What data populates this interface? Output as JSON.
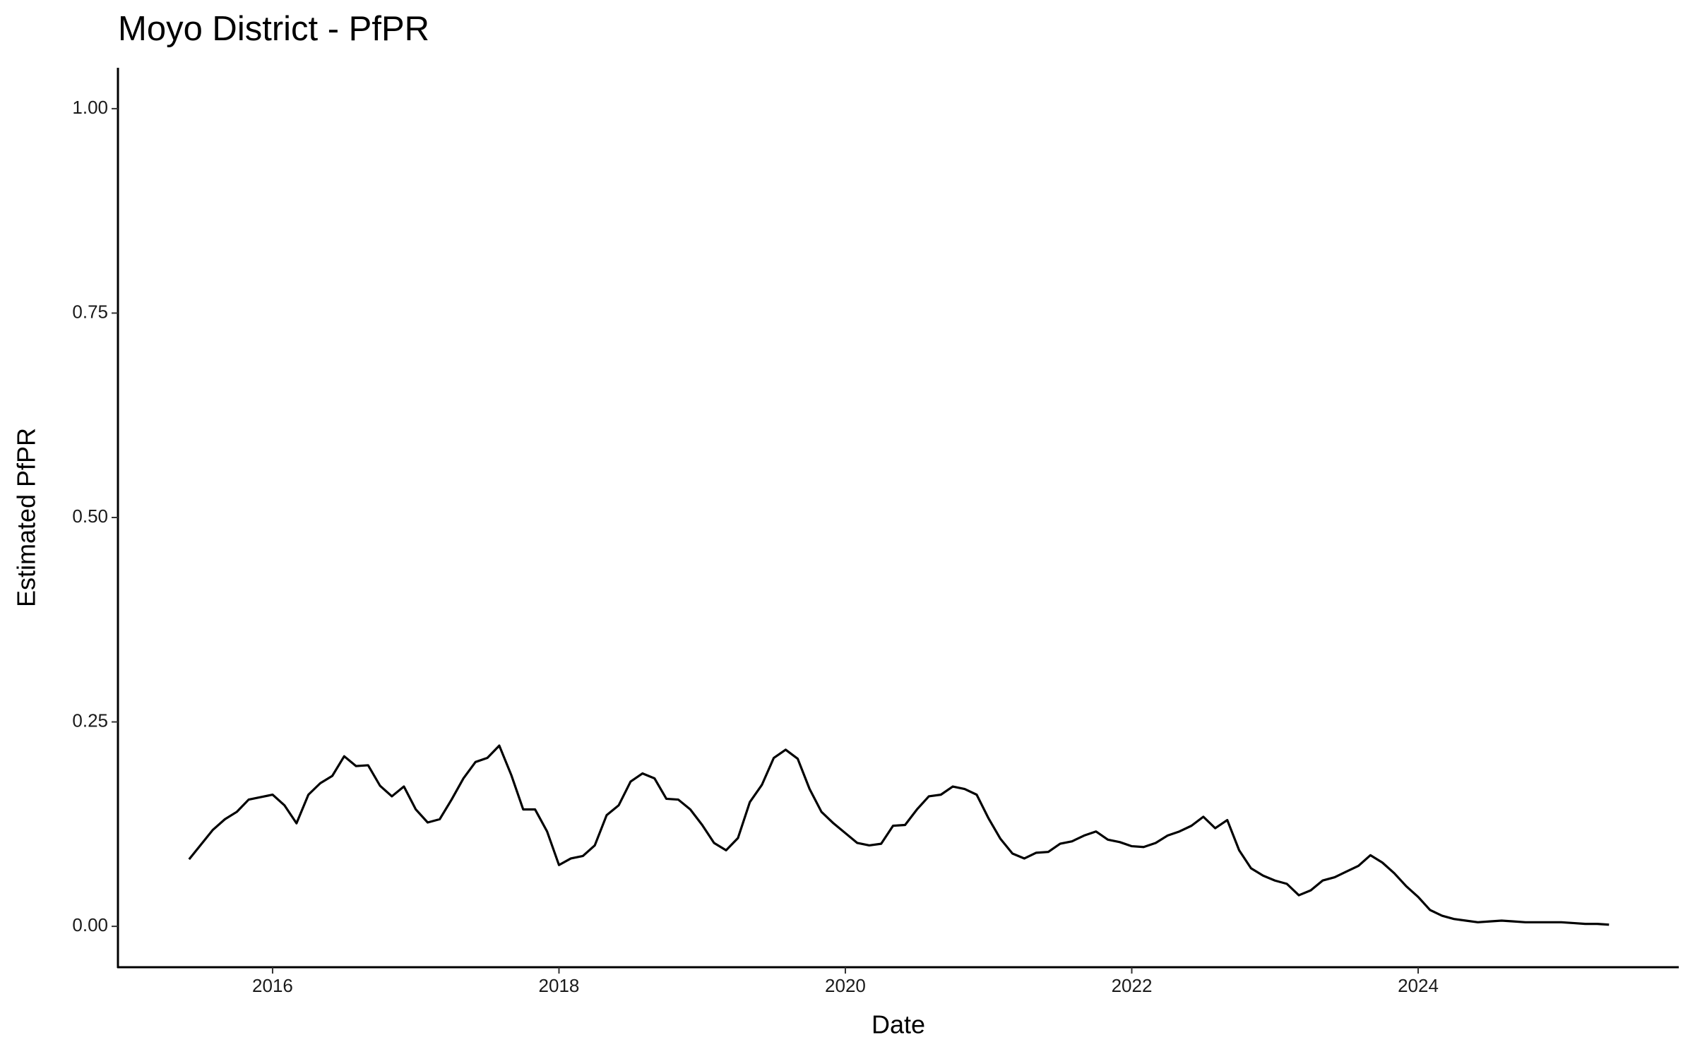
{
  "chart_data": {
    "type": "line",
    "title": "Moyo District - PfPR",
    "x_label": "Date",
    "y_label": "Estimated PfPR",
    "x": [
      2015.417,
      2015.5,
      2015.583,
      2015.667,
      2015.75,
      2015.833,
      2015.917,
      2016,
      2016.083,
      2016.167,
      2016.25,
      2016.333,
      2016.417,
      2016.5,
      2016.583,
      2016.667,
      2016.75,
      2016.833,
      2016.917,
      2017,
      2017.083,
      2017.167,
      2017.25,
      2017.333,
      2017.417,
      2017.5,
      2017.583,
      2017.667,
      2017.75,
      2017.833,
      2017.917,
      2018,
      2018.083,
      2018.167,
      2018.25,
      2018.333,
      2018.417,
      2018.5,
      2018.583,
      2018.667,
      2018.75,
      2018.833,
      2018.917,
      2019,
      2019.083,
      2019.167,
      2019.25,
      2019.333,
      2019.417,
      2019.5,
      2019.583,
      2019.667,
      2019.75,
      2019.833,
      2019.917,
      2020,
      2020.083,
      2020.167,
      2020.25,
      2020.333,
      2020.417,
      2020.5,
      2020.583,
      2020.667,
      2020.75,
      2020.833,
      2020.917,
      2021,
      2021.083,
      2021.167,
      2021.25,
      2021.333,
      2021.417,
      2021.5,
      2021.583,
      2021.667,
      2021.75,
      2021.833,
      2021.917,
      2022,
      2022.083,
      2022.167,
      2022.25,
      2022.333,
      2022.417,
      2022.5,
      2022.583,
      2022.667,
      2022.75,
      2022.833,
      2022.917,
      2023,
      2023.083,
      2023.167,
      2023.25,
      2023.333,
      2023.417,
      2023.5,
      2023.583,
      2023.667,
      2023.75,
      2023.833,
      2023.917,
      2024,
      2024.083,
      2024.167,
      2024.25,
      2024.333,
      2024.417,
      2024.5,
      2024.583,
      2024.667,
      2024.75,
      2024.833,
      2024.917,
      2025,
      2025.083,
      2025.167,
      2025.25,
      2025.333
    ],
    "values": [
      0.082,
      0.1,
      0.118,
      0.131,
      0.14,
      0.155,
      0.158,
      0.161,
      0.148,
      0.126,
      0.161,
      0.175,
      0.184,
      0.208,
      0.196,
      0.197,
      0.172,
      0.159,
      0.171,
      0.143,
      0.127,
      0.131,
      0.155,
      0.181,
      0.201,
      0.206,
      0.221,
      0.185,
      0.143,
      0.143,
      0.116,
      0.075,
      0.083,
      0.086,
      0.099,
      0.136,
      0.148,
      0.177,
      0.187,
      0.181,
      0.156,
      0.155,
      0.143,
      0.124,
      0.102,
      0.093,
      0.108,
      0.152,
      0.173,
      0.206,
      0.216,
      0.205,
      0.168,
      0.14,
      0.126,
      0.114,
      0.102,
      0.099,
      0.101,
      0.123,
      0.124,
      0.143,
      0.159,
      0.161,
      0.171,
      0.168,
      0.161,
      0.132,
      0.107,
      0.089,
      0.083,
      0.09,
      0.091,
      0.101,
      0.104,
      0.111,
      0.116,
      0.106,
      0.103,
      0.098,
      0.097,
      0.102,
      0.111,
      0.116,
      0.123,
      0.134,
      0.12,
      0.13,
      0.093,
      0.071,
      0.062,
      0.056,
      0.052,
      0.038,
      0.044,
      0.056,
      0.06,
      0.067,
      0.074,
      0.087,
      0.078,
      0.065,
      0.049,
      0.036,
      0.02,
      0.013,
      0.009,
      0.007,
      0.005,
      0.006,
      0.007,
      0.006,
      0.005,
      0.005,
      0.005,
      0.005,
      0.004,
      0.003,
      0.003,
      0.002
    ],
    "color": "#000000",
    "xlim": [
      2014.92,
      2025.82
    ],
    "xticks": [
      2016,
      2018,
      2020,
      2022,
      2024
    ],
    "ylim": [
      -0.05,
      1.05
    ],
    "yticks": [
      {
        "value": 0,
        "label": "0.00"
      },
      {
        "value": 0.25,
        "label": "0.25"
      },
      {
        "value": 0.5,
        "label": "0.50"
      },
      {
        "value": 0.75,
        "label": "0.75"
      },
      {
        "value": 1,
        "label": "1.00"
      }
    ],
    "grid": false
  }
}
